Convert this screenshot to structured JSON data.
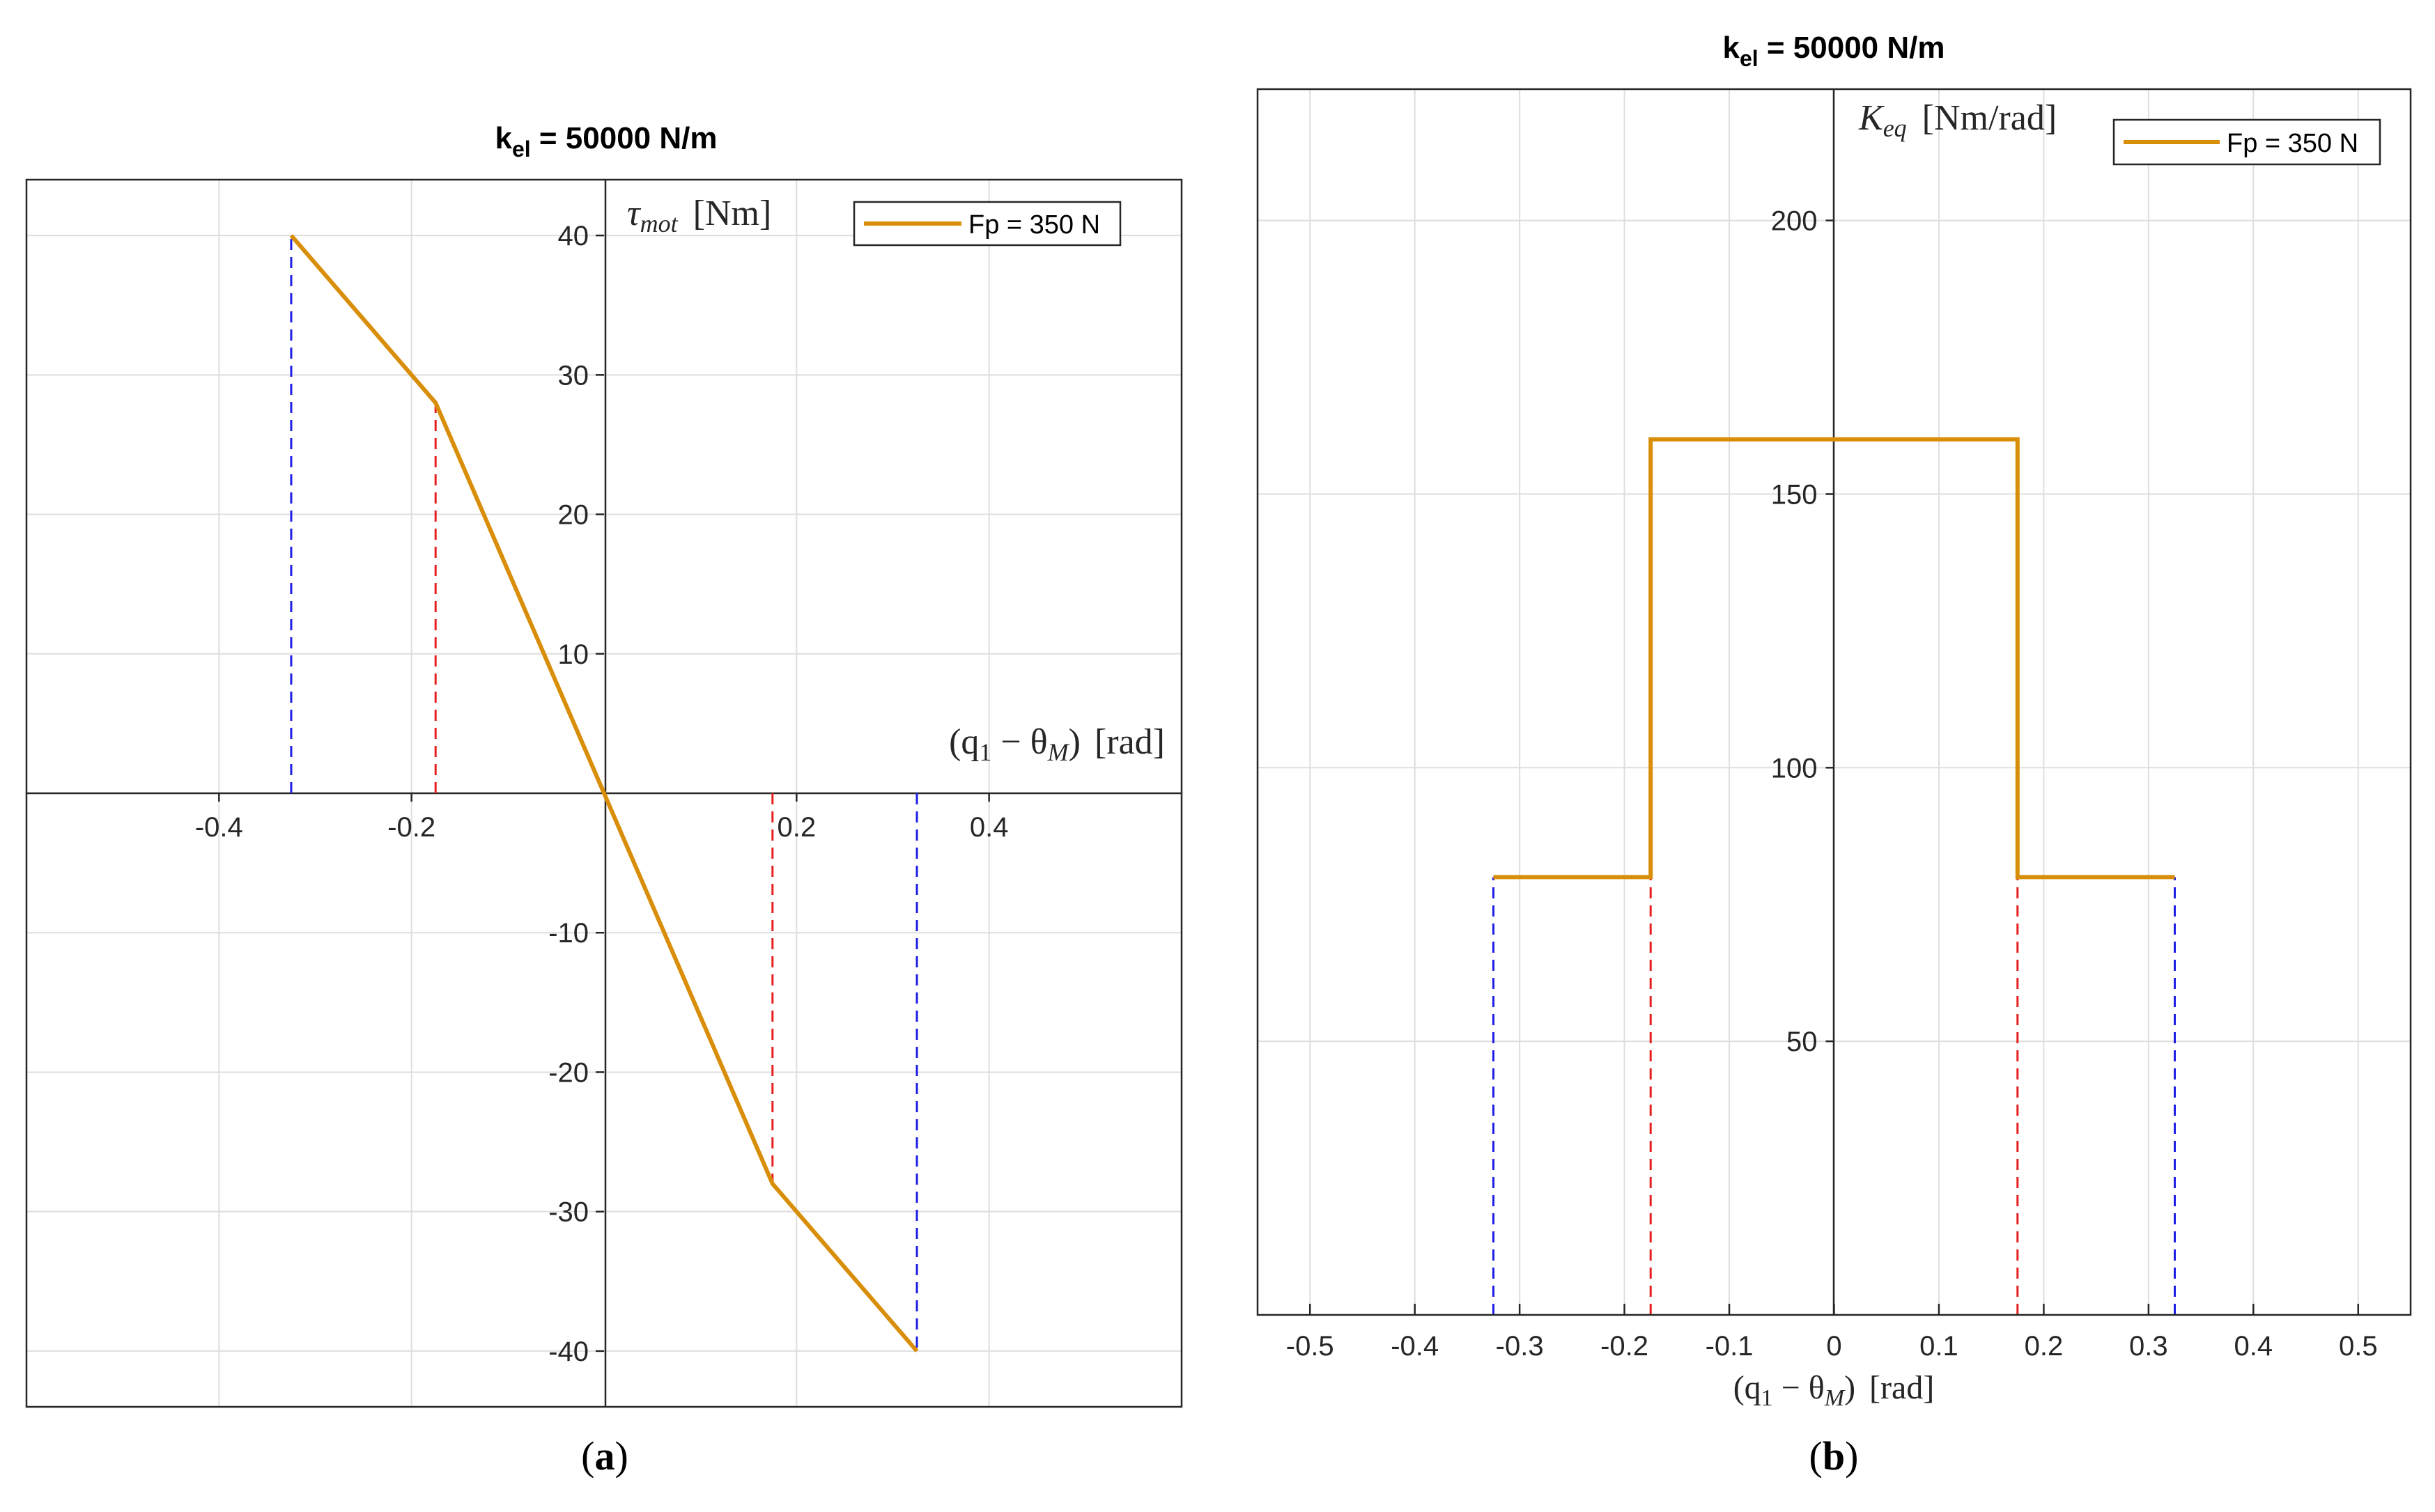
{
  "colors": {
    "series": "#D98E0A",
    "outer_limit": "#1F1FE6",
    "inner_limit": "#E61F1F",
    "grid": "#DEDEDE",
    "axis": "#262626"
  },
  "chart_data": [
    {
      "type": "line",
      "panel": "a",
      "caption_open": "(",
      "caption_letter": "a",
      "caption_close": ")",
      "title_main": "k",
      "title_sub": "el",
      "title_rest": " = 50000 N/m",
      "ylabel_sym": "τ",
      "ylabel_sub": "mot",
      "ylabel_unit": "[Nm]",
      "xlabel_open": "(q",
      "xlabel_sub1": "1",
      "xlabel_mid": " − θ",
      "xlabel_sub2": "M",
      "xlabel_close": ")",
      "xlabel_unit": "[rad]",
      "xlim": [
        -0.6,
        0.6
      ],
      "ylim": [
        -44,
        44
      ],
      "xticks": [
        -0.4,
        -0.2,
        0.2,
        0.4
      ],
      "xtick_labels": [
        "-0.4",
        "-0.2",
        "0.2",
        "0.4"
      ],
      "yticks": [
        -40,
        -30,
        -20,
        -10,
        10,
        20,
        30,
        40
      ],
      "ytick_labels": [
        "-40",
        "-30",
        "-20",
        "-10",
        "10",
        "20",
        "30",
        "40"
      ],
      "grid": true,
      "legend": "top-right",
      "series": [
        {
          "name": "Fp = 350 N",
          "x": [
            -0.325,
            -0.175,
            0,
            0.175,
            0.325
          ],
          "y": [
            40,
            28,
            0,
            -28,
            -40
          ]
        }
      ],
      "limit_lines": [
        {
          "kind": "outer",
          "x": -0.325,
          "y": 40
        },
        {
          "kind": "inner",
          "x": -0.175,
          "y": 28
        },
        {
          "kind": "inner",
          "x": 0.175,
          "y": -28
        },
        {
          "kind": "outer",
          "x": 0.325,
          "y": -40
        }
      ]
    },
    {
      "type": "line",
      "panel": "b",
      "caption_open": "(",
      "caption_letter": "b",
      "caption_close": ")",
      "title_main": "k",
      "title_sub": "el",
      "title_rest": " = 50000 N/m",
      "ylabel_sym": "K",
      "ylabel_sub": "eq",
      "ylabel_unit": "[Nm/rad]",
      "xlabel_open": "(q",
      "xlabel_sub1": "1",
      "xlabel_mid": " − θ",
      "xlabel_sub2": "M",
      "xlabel_close": ")",
      "xlabel_unit": "[rad]",
      "xlim": [
        -0.55,
        0.55
      ],
      "ylim": [
        0,
        224
      ],
      "xticks": [
        -0.5,
        -0.4,
        -0.3,
        -0.2,
        -0.1,
        0,
        0.1,
        0.2,
        0.3,
        0.4,
        0.5
      ],
      "xtick_labels": [
        "-0.5",
        "-0.4",
        "-0.3",
        "-0.2",
        "-0.1",
        "0",
        "0.1",
        "0.2",
        "0.3",
        "0.4",
        "0.5"
      ],
      "yticks": [
        50,
        100,
        150,
        200
      ],
      "ytick_labels": [
        "50",
        "100",
        "150",
        "200"
      ],
      "grid": true,
      "legend": "top-right",
      "series": [
        {
          "name": "Fp = 350 N",
          "x": [
            -0.325,
            -0.175,
            -0.175,
            0.175,
            0.175,
            0.325
          ],
          "y": [
            80,
            80,
            160,
            160,
            80,
            80
          ]
        }
      ],
      "limit_lines": [
        {
          "kind": "outer",
          "x": -0.325,
          "y": 80
        },
        {
          "kind": "inner",
          "x": -0.175,
          "y": 80
        },
        {
          "kind": "inner",
          "x": 0.175,
          "y": 80
        },
        {
          "kind": "outer",
          "x": 0.325,
          "y": 80
        }
      ]
    }
  ]
}
